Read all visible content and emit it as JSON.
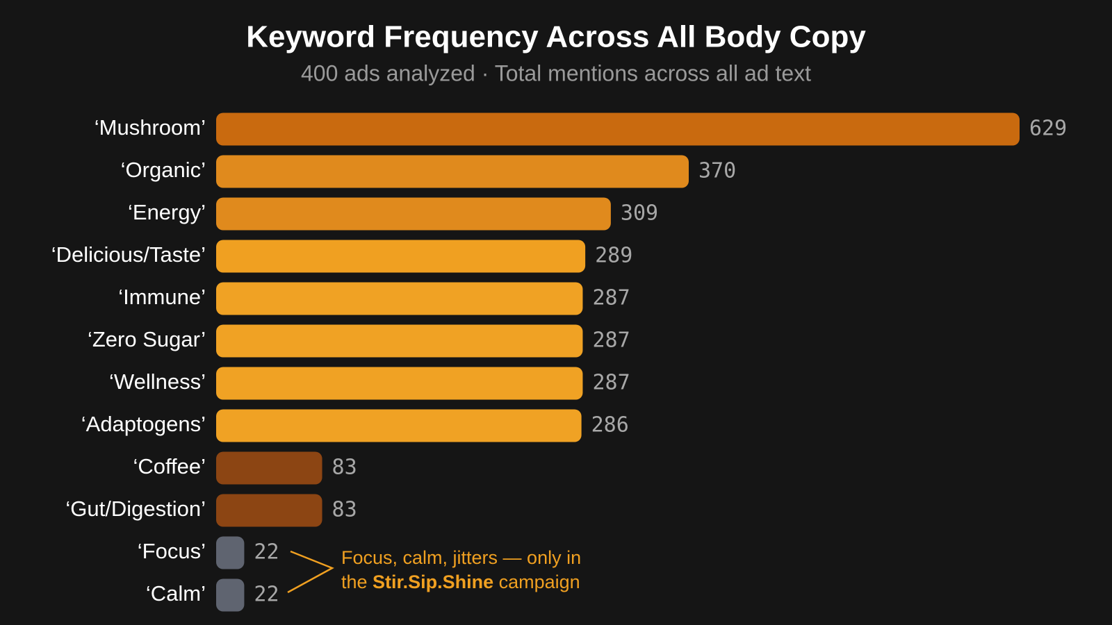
{
  "chart_data": {
    "type": "bar",
    "orientation": "horizontal",
    "title": "Keyword Frequency Across All Body Copy",
    "subtitle": "400 ads analyzed · Total mentions across all ad text",
    "categories": [
      "‘Mushroom’",
      "‘Organic’",
      "‘Energy’",
      "‘Delicious/Taste’",
      "‘Immune’",
      "‘Zero Sugar’",
      "‘Wellness’",
      "‘Adaptogens’",
      "‘Coffee’",
      "‘Gut/Digestion’",
      "‘Focus’",
      "‘Calm’"
    ],
    "values": [
      629,
      370,
      309,
      289,
      287,
      287,
      287,
      286,
      83,
      83,
      22,
      22
    ],
    "colors": [
      "#c96a0f",
      "#e08a1d",
      "#e08a1d",
      "#f0a021",
      "#f0a224",
      "#f0a224",
      "#f0a224",
      "#f0a224",
      "#8c4513",
      "#8c4513",
      "#5f6470",
      "#5f6470"
    ],
    "annotation": {
      "lines": [
        [
          {
            "text": "Focus, calm, jitters — only in"
          }
        ],
        [
          {
            "text": "the "
          },
          {
            "text": "Stir.Sip.Shine",
            "bold": true
          },
          {
            "text": " campaign"
          }
        ]
      ],
      "color": "#f0a021"
    }
  }
}
